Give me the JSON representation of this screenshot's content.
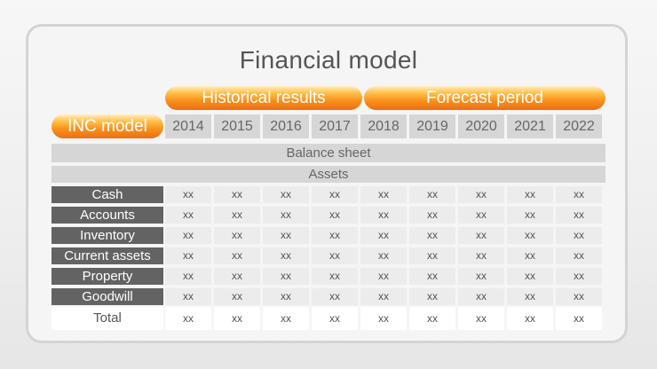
{
  "title": "Financial model",
  "header": {
    "historical_label": "Historical results",
    "forecast_label": "Forecast period",
    "model_label": "INC model",
    "years": [
      "2014",
      "2015",
      "2016",
      "2017",
      "2018",
      "2019",
      "2020",
      "2021",
      "2022"
    ]
  },
  "sections": {
    "balance_sheet": "Balance sheet",
    "assets": "Assets"
  },
  "rows": [
    {
      "label": "Cash",
      "values": [
        "xx",
        "xx",
        "xx",
        "xx",
        "xx",
        "xx",
        "xx",
        "xx",
        "xx"
      ]
    },
    {
      "label": "Accounts",
      "values": [
        "xx",
        "xx",
        "xx",
        "xx",
        "xx",
        "xx",
        "xx",
        "xx",
        "xx"
      ]
    },
    {
      "label": "Inventory",
      "values": [
        "xx",
        "xx",
        "xx",
        "xx",
        "xx",
        "xx",
        "xx",
        "xx",
        "xx"
      ]
    },
    {
      "label": "Current assets",
      "values": [
        "xx",
        "xx",
        "xx",
        "xx",
        "xx",
        "xx",
        "xx",
        "xx",
        "xx"
      ]
    },
    {
      "label": "Property",
      "values": [
        "xx",
        "xx",
        "xx",
        "xx",
        "xx",
        "xx",
        "xx",
        "xx",
        "xx"
      ]
    },
    {
      "label": "Goodwill",
      "values": [
        "xx",
        "xx",
        "xx",
        "xx",
        "xx",
        "xx",
        "xx",
        "xx",
        "xx"
      ]
    }
  ],
  "total": {
    "label": "Total",
    "values": [
      "xx",
      "xx",
      "xx",
      "xx",
      "xx",
      "xx",
      "xx",
      "xx",
      "xx"
    ]
  },
  "colors": {
    "accent_orange": "#f7911c",
    "row_label_bg": "#636363",
    "header_cell_bg": "#d6d6d6"
  }
}
